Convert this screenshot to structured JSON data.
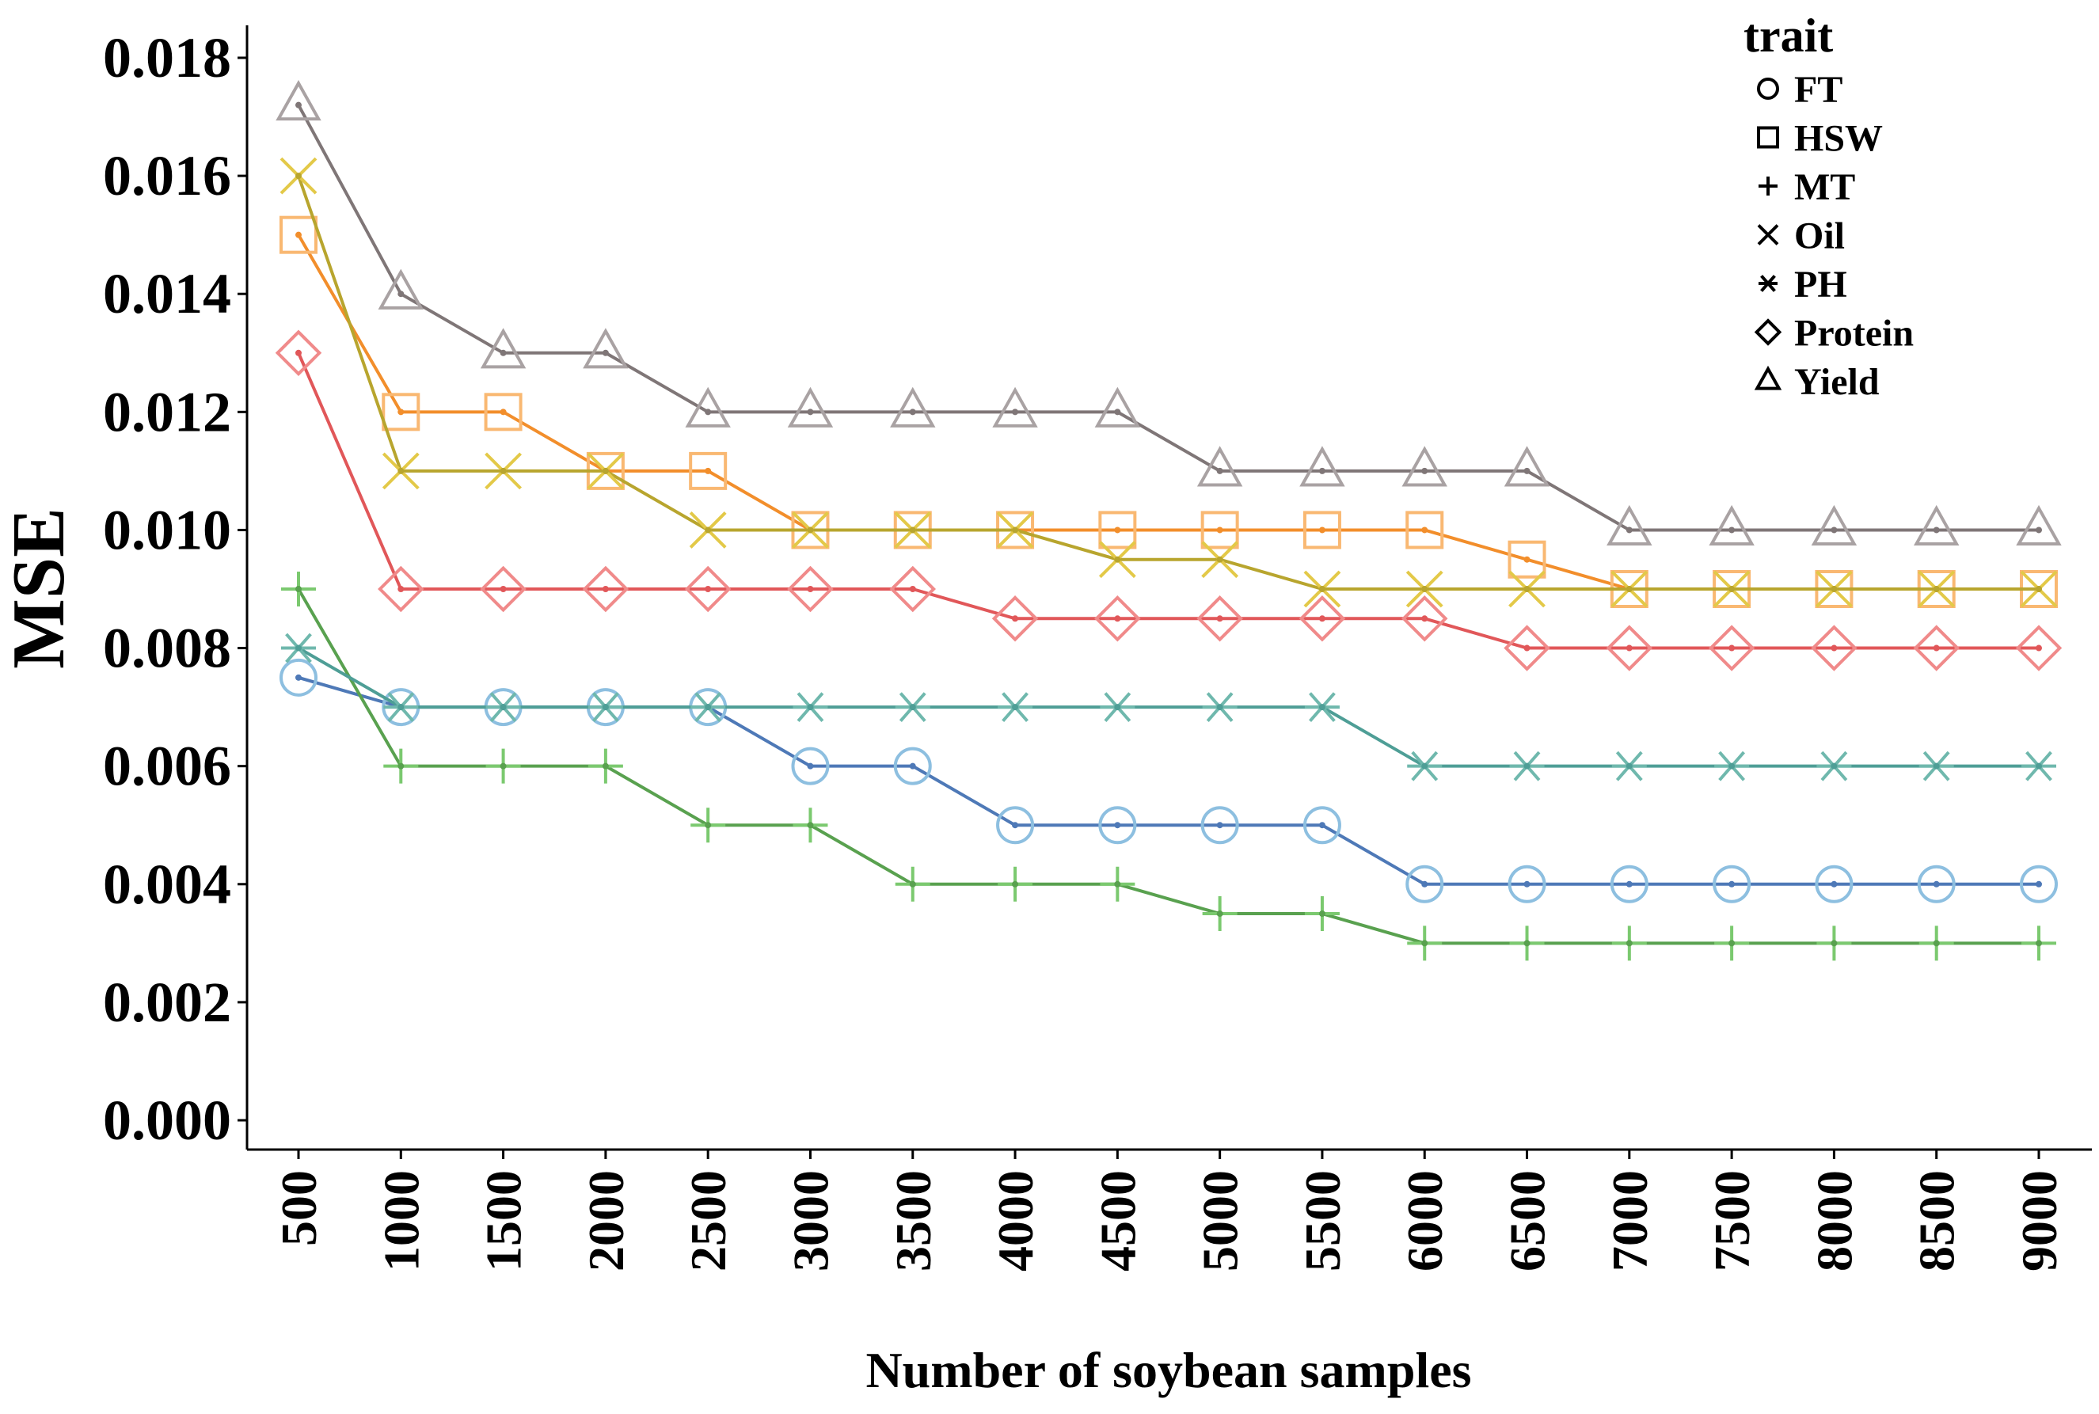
{
  "chart_data": {
    "type": "line",
    "title": "",
    "xlabel": "Number of soybean samples",
    "ylabel": "MSE",
    "categories": [
      "500",
      "1000",
      "1500",
      "2000",
      "2500",
      "3000",
      "3500",
      "4000",
      "4500",
      "5000",
      "5500",
      "6000",
      "6500",
      "7000",
      "7500",
      "8000",
      "8500",
      "9000"
    ],
    "ylim": [
      0,
      0.018
    ],
    "yticks": [
      "0.000",
      "0.002",
      "0.004",
      "0.006",
      "0.008",
      "0.010",
      "0.012",
      "0.014",
      "0.016",
      "0.018"
    ],
    "grid": false,
    "legend": {
      "title": "trait",
      "position": "top-right"
    },
    "series": [
      {
        "name": "FT",
        "marker": "circle",
        "color": "#4e79b7",
        "marker_color": "#8dbfe0",
        "values": [
          0.0075,
          0.007,
          0.007,
          0.007,
          0.007,
          0.006,
          0.006,
          0.005,
          0.005,
          0.005,
          0.005,
          0.004,
          0.004,
          0.004,
          0.004,
          0.004,
          0.004,
          0.004
        ]
      },
      {
        "name": "HSW",
        "marker": "square",
        "color": "#f28e2b",
        "marker_color": "#f9b872",
        "values": [
          0.015,
          0.012,
          0.012,
          0.011,
          0.011,
          0.01,
          0.01,
          0.01,
          0.01,
          0.01,
          0.01,
          0.01,
          0.0095,
          0.009,
          0.009,
          0.009,
          0.009,
          0.009
        ]
      },
      {
        "name": "MT",
        "marker": "plus",
        "color": "#59a14f",
        "marker_color": "#7bc96f",
        "values": [
          0.009,
          0.006,
          0.006,
          0.006,
          0.005,
          0.005,
          0.004,
          0.004,
          0.004,
          0.0035,
          0.0035,
          0.003,
          0.003,
          0.003,
          0.003,
          0.003,
          0.003,
          0.003
        ]
      },
      {
        "name": "Oil",
        "marker": "cross",
        "color": "#b8a52e",
        "marker_color": "#e3c948",
        "values": [
          0.016,
          0.011,
          0.011,
          0.011,
          0.01,
          0.01,
          0.01,
          0.01,
          0.0095,
          0.0095,
          0.009,
          0.009,
          0.009,
          0.009,
          0.009,
          0.009,
          0.009,
          0.009
        ]
      },
      {
        "name": "PH",
        "marker": "asterisk",
        "color": "#4e9e96",
        "marker_color": "#6fb8ad",
        "values": [
          0.008,
          0.007,
          0.007,
          0.007,
          0.007,
          0.007,
          0.007,
          0.007,
          0.007,
          0.007,
          0.007,
          0.006,
          0.006,
          0.006,
          0.006,
          0.006,
          0.006,
          0.006
        ]
      },
      {
        "name": "Protein",
        "marker": "diamond",
        "color": "#e15759",
        "marker_color": "#f08a8a",
        "values": [
          0.013,
          0.009,
          0.009,
          0.009,
          0.009,
          0.009,
          0.009,
          0.0085,
          0.0085,
          0.0085,
          0.0085,
          0.0085,
          0.008,
          0.008,
          0.008,
          0.008,
          0.008,
          0.008
        ]
      },
      {
        "name": "Yield",
        "marker": "triangle",
        "color": "#7f7677",
        "marker_color": "#a9a2a3",
        "values": [
          0.0172,
          0.014,
          0.013,
          0.013,
          0.012,
          0.012,
          0.012,
          0.012,
          0.012,
          0.011,
          0.011,
          0.011,
          0.011,
          0.01,
          0.01,
          0.01,
          0.01,
          0.01
        ]
      }
    ]
  }
}
